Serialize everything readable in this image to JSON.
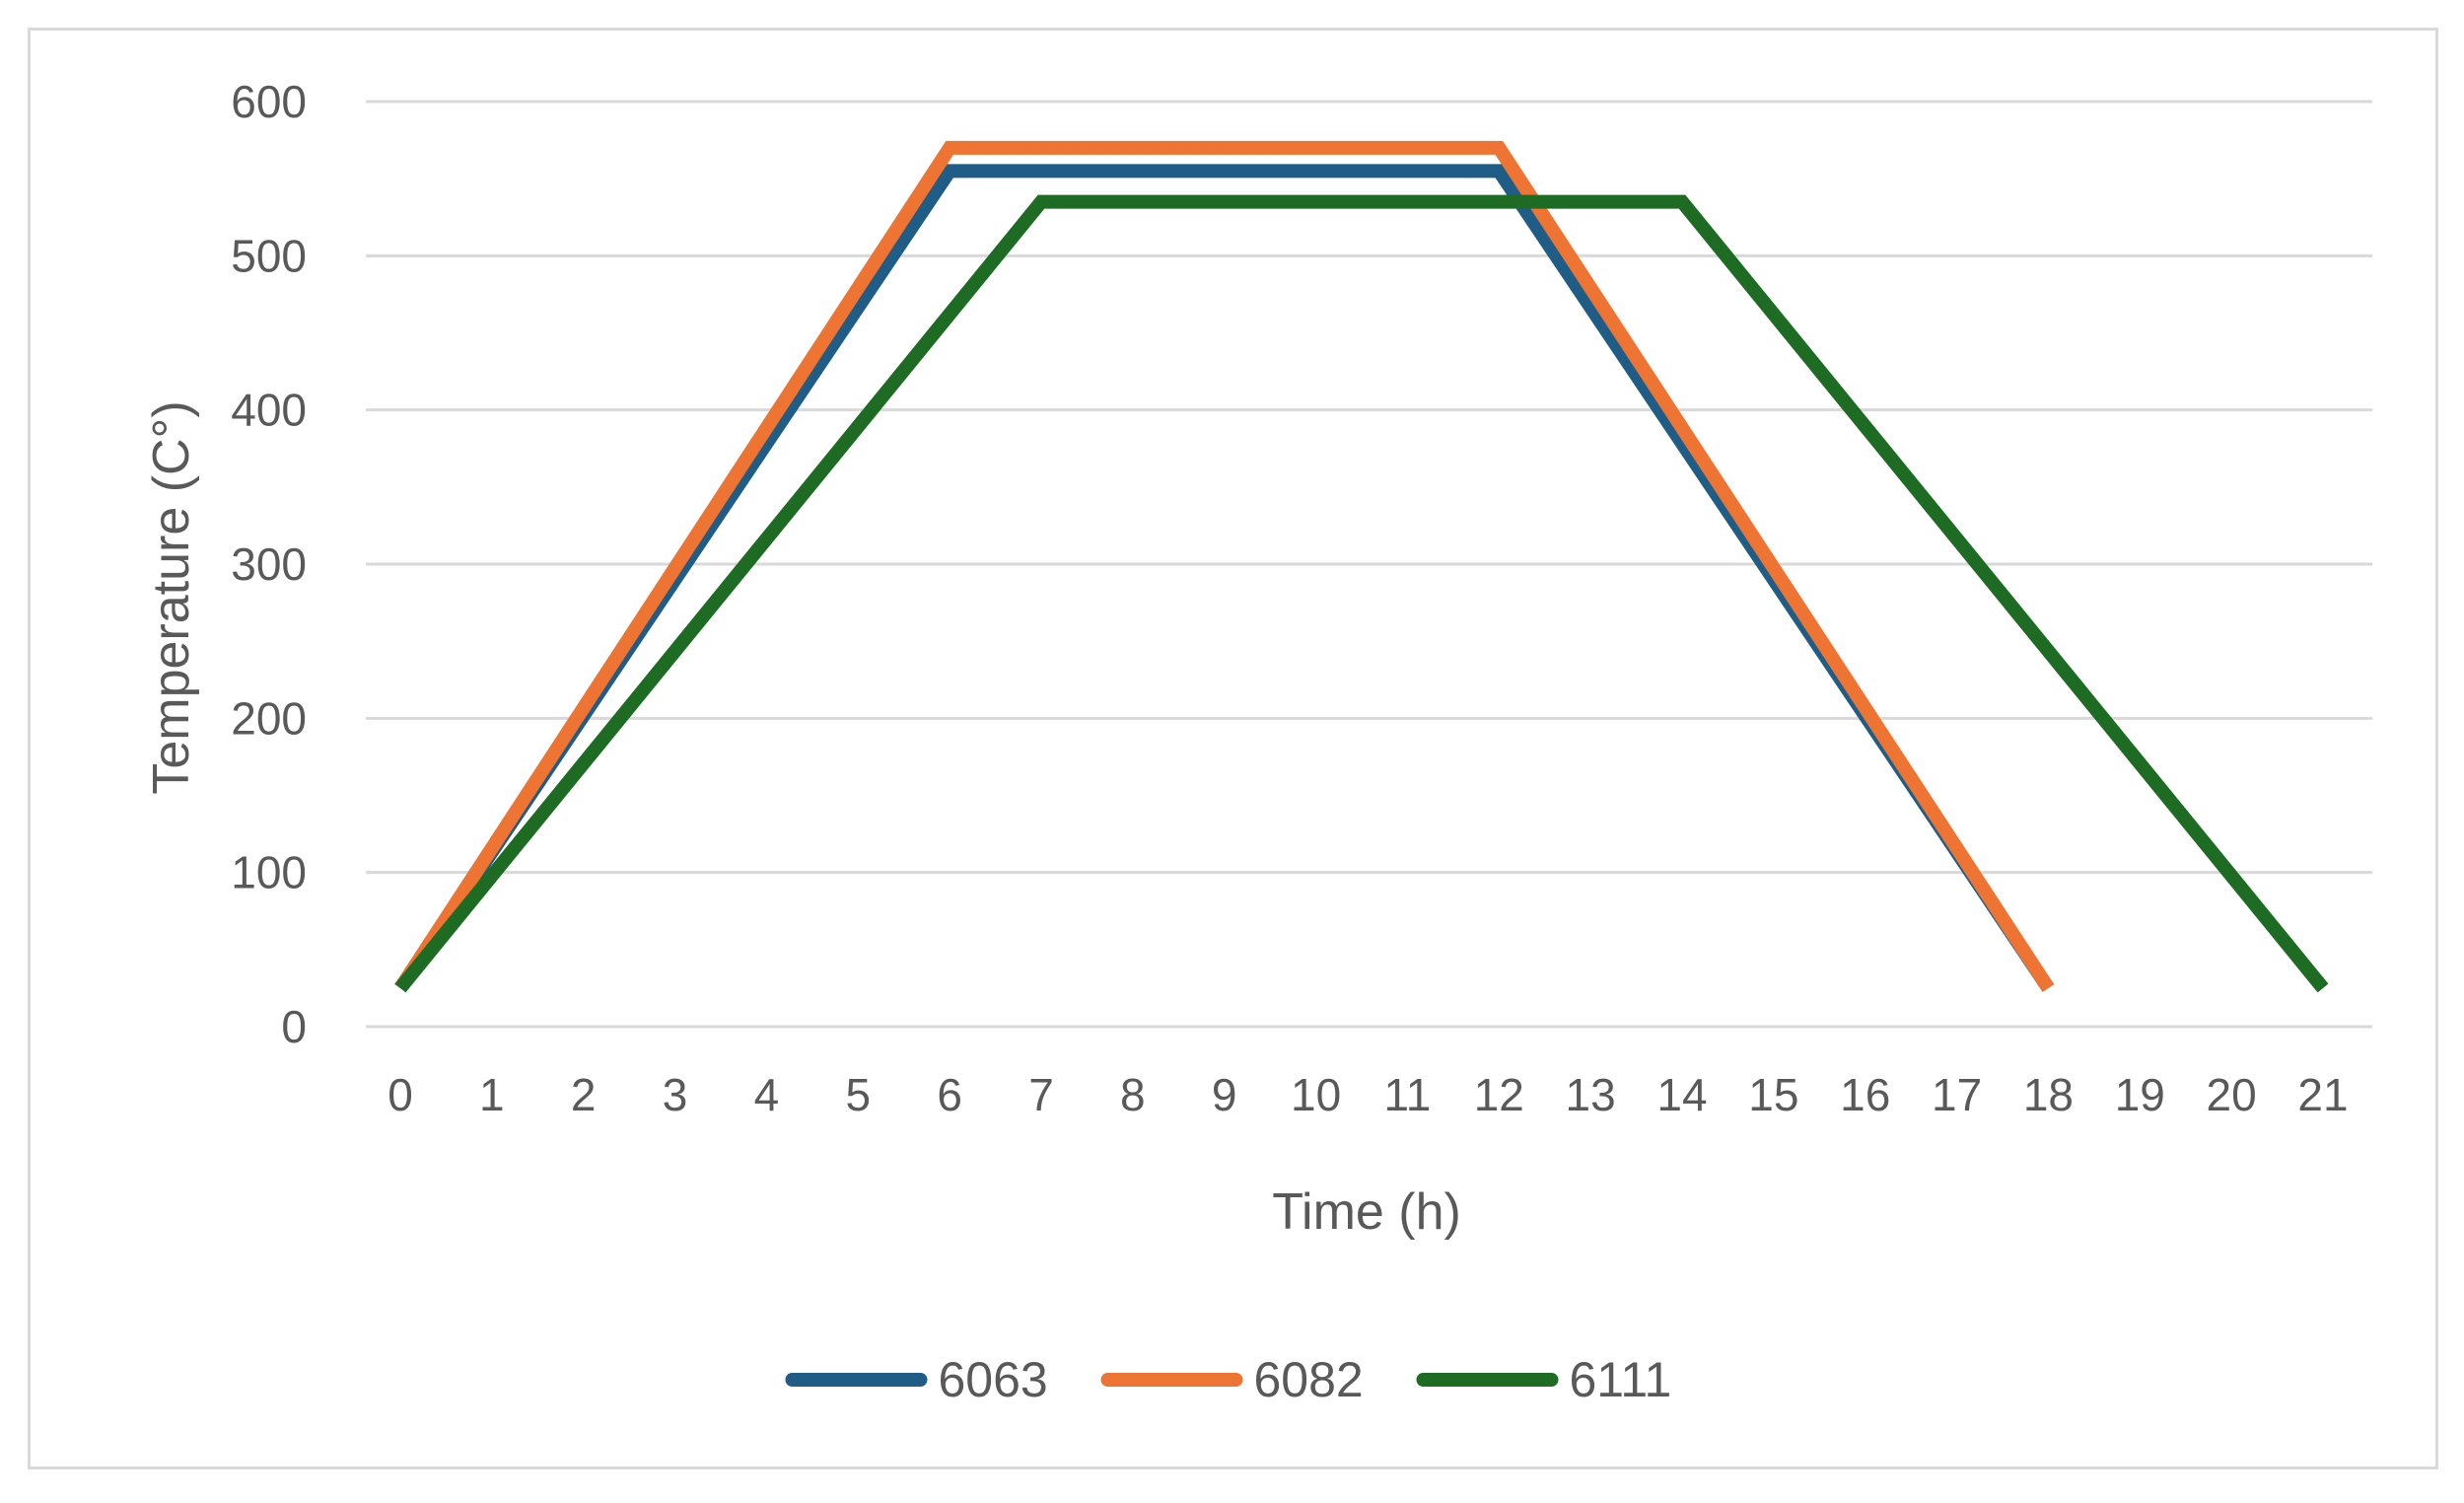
{
  "chart_data": {
    "type": "line",
    "xlabel": "Time (h)",
    "ylabel": "Temperature (C°)",
    "xlim": [
      0,
      21
    ],
    "ylim": [
      0,
      600
    ],
    "x_ticks": [
      0,
      1,
      2,
      3,
      4,
      5,
      6,
      7,
      8,
      9,
      10,
      11,
      12,
      13,
      14,
      15,
      16,
      17,
      18,
      19,
      20,
      21
    ],
    "y_ticks": [
      0,
      100,
      200,
      300,
      400,
      500,
      600
    ],
    "grid": "horizontal",
    "legend": "bottom",
    "series": [
      {
        "name": "6063",
        "color": "#1f5c86",
        "x": [
          0,
          6,
          12,
          18
        ],
        "y": [
          25,
          555,
          555,
          25
        ]
      },
      {
        "name": "6082",
        "color": "#ed7433",
        "x": [
          0,
          6,
          12,
          18
        ],
        "y": [
          25,
          570,
          570,
          25
        ]
      },
      {
        "name": "6111",
        "color": "#1e6b23",
        "x": [
          0,
          7,
          14,
          21
        ],
        "y": [
          25,
          535,
          535,
          25
        ]
      }
    ]
  }
}
